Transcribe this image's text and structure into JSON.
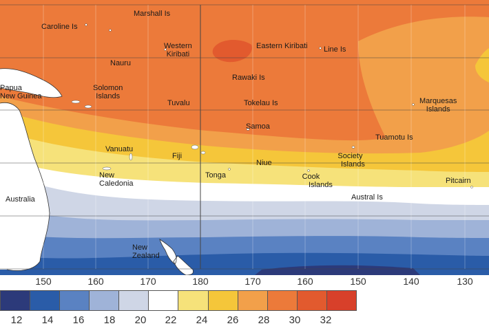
{
  "colors": {
    "c12": "#2c3a7a",
    "c14": "#2a5ca8",
    "c16": "#5a82c2",
    "c18": "#9fb3d8",
    "c20": "#cfd6e6",
    "c22": "#ffffff",
    "c24": "#f6e27a",
    "c26": "#f5c63a",
    "c28": "#f2a04a",
    "c30": "#ec7a3a",
    "c32": "#e25a2e",
    "c34": "#d8402a",
    "land": "#ffffff",
    "grid": "#444444"
  },
  "longitude_ticks": [
    "150",
    "160",
    "170",
    "180",
    "170",
    "160",
    "150",
    "140",
    "130"
  ],
  "colorbar_ticks": [
    "12",
    "14",
    "16",
    "18",
    "20",
    "22",
    "24",
    "26",
    "28",
    "30",
    "32"
  ],
  "labels": {
    "marshall": "Marshall Is",
    "caroline": "Caroline Is",
    "western_kiribati_1": "Western",
    "western_kiribati_2": "Kiribati",
    "eastern_kiribati": "Eastern Kiribati",
    "line": "Line Is",
    "nauru": "Nauru",
    "rawaki": "Rawaki Is",
    "png_1": "Papua",
    "png_2": "New Guinea",
    "solomon_1": "Solomon",
    "solomon_2": "Islands",
    "tuvalu": "Tuvalu",
    "tokelau": "Tokelau Is",
    "marquesas_1": "Marquesas",
    "marquesas_2": "Islands",
    "samoa": "Samoa",
    "tuamotu": "Tuamotu Is",
    "vanuatu": "Vanuatu",
    "fiji": "Fiji",
    "niue": "Niue",
    "society_1": "Society",
    "society_2": "Islands",
    "new_caledonia_1": "New",
    "new_caledonia_2": "Caledonia",
    "tonga": "Tonga",
    "cook_1": "Cook",
    "cook_2": "Islands",
    "pitcairn": "Pitcairn",
    "australia": "Australia",
    "austral": "Austral Is",
    "new_zealand_1": "New",
    "new_zealand_2": "Zealand"
  }
}
